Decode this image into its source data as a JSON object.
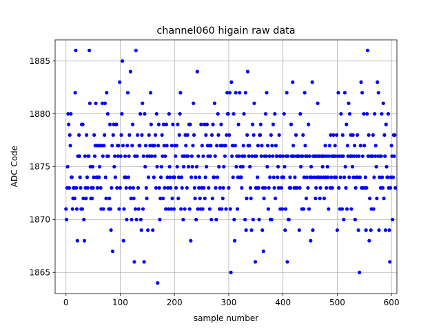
{
  "chart_data": {
    "type": "scatter",
    "title": "channel060 higain raw data",
    "xlabel": "sample number",
    "ylabel": "ADC Code",
    "xlim": [
      -20,
      610
    ],
    "ylim": [
      1863,
      1887
    ],
    "xticks": [
      0,
      100,
      200,
      300,
      400,
      500,
      600
    ],
    "yticks": [
      1865,
      1870,
      1875,
      1880,
      1885
    ],
    "grid": true,
    "marker_color": "#0000ff",
    "series": [
      {
        "values": [
          1871,
          1870,
          1873,
          1875,
          1880,
          1879,
          1873,
          1878,
          1877,
          1880,
          1874,
          1874,
          1871,
          1872,
          1873,
          1873,
          1872,
          1882,
          1886,
          1873,
          1871,
          1868,
          1876,
          1876,
          1878,
          1876,
          1874,
          1873,
          1871,
          1879,
          1871,
          1879,
          1872,
          1870,
          1868,
          1876,
          1873,
          1872,
          1878,
          1874,
          1873,
          1876,
          1876,
          1886,
          1881,
          1875,
          1872,
          1873,
          1872,
          1875,
          1873,
          1874,
          1878,
          1876,
          1877,
          1881,
          1874,
          1877,
          1873,
          1874,
          1877,
          1874,
          1875,
          1877,
          1873,
          1871,
          1877,
          1881,
          1876,
          1871,
          1877,
          1878,
          1881,
          1874,
          1872,
          1882,
          1876,
          1880,
          1876,
          1871,
          1872,
          1879,
          1871,
          1869,
          1873,
          1877,
          1867,
          1878,
          1879,
          1875,
          1876,
          1874,
          1879,
          1879,
          1873,
          1877,
          1876,
          1877,
          1871,
          1883,
          1873,
          1876,
          1878,
          1880,
          1885,
          1877,
          1868,
          1871,
          1874,
          1876,
          1874,
          1873,
          1870,
          1877,
          1882,
          1874,
          1876,
          1878,
          1873,
          1884,
          1872,
          1870,
          1877,
          1879,
          1873,
          1872,
          1866,
          1876,
          1871,
          1886,
          1870,
          1876,
          1878,
          1873,
          1871,
          1877,
          1877,
          1880,
          1870,
          1869,
          1878,
          1881,
          1871,
          1876,
          1866,
          1880,
          1875,
          1877,
          1873,
          1872,
          1876,
          1869,
          1874,
          1878,
          1876,
          1877,
          1882,
          1879,
          1876,
          1877,
          1869,
          1877,
          1874,
          1877,
          1876,
          1878,
          1873,
          1880,
          1875,
          1864,
          1877,
          1879,
          1873,
          1870,
          1872,
          1874,
          1875,
          1878,
          1876,
          1872,
          1879,
          1877,
          1873,
          1876,
          1871,
          1879,
          1877,
          1874,
          1873,
          1871,
          1880,
          1875,
          1874,
          1873,
          1871,
          1877,
          1872,
          1879,
          1874,
          1871,
          1874,
          1877,
          1876,
          1873,
          1877,
          1875,
          1879,
          1872,
          1874,
          1878,
          1880,
          1882,
          1871,
          1874,
          1873,
          1876,
          1870,
          1875,
          1876,
          1871,
          1878,
          1877,
          1876,
          1873,
          1878,
          1876,
          1875,
          1879,
          1871,
          1879,
          1868,
          1874,
          1876,
          1875,
          1877,
          1881,
          1878,
          1873,
          1872,
          1874,
          1870,
          1875,
          1884,
          1871,
          1876,
          1873,
          1874,
          1872,
          1871,
          1879,
          1873,
          1877,
          1871,
          1876,
          1873,
          1879,
          1872,
          1874,
          1878,
          1875,
          1879,
          1877,
          1876,
          1873,
          1877,
          1871,
          1876,
          1877,
          1870,
          1878,
          1872,
          1879,
          1874,
          1874,
          1881,
          1876,
          1873,
          1870,
          1877,
          1874,
          1880,
          1878,
          1875,
          1871,
          1873,
          1877,
          1879,
          1871,
          1877,
          1872,
          1873,
          1875,
          1877,
          1876,
          1877,
          1871,
          1878,
          1882,
          1880,
          1880,
          1873,
          1878,
          1882,
          1871,
          1865,
          1883,
          1876,
          1877,
          1874,
          1880,
          1870,
          1868,
          1877,
          1882,
          1875,
          1876,
          1871,
          1874,
          1879,
          1876,
          1882,
          1874,
          1875,
          1874,
          1873,
          1876,
          1875,
          1877,
          1880,
          1876,
          1870,
          1882,
          1869,
          1872,
          1878,
          1884,
          1877,
          1876,
          1877,
          1875,
          1873,
          1872,
          1869,
          1876,
          1879,
          1870,
          1878,
          1881,
          1876,
          1866,
          1873,
          1876,
          1873,
          1874,
          1877,
          1873,
          1870,
          1878,
          1878,
          1879,
          1876,
          1877,
          1869,
          1873,
          1867,
          1872,
          1876,
          1873,
          1880,
          1876,
          1882,
          1875,
          1877,
          1871,
          1873,
          1876,
          1874,
          1870,
          1878,
          1870,
          1877,
          1876,
          1879,
          1874,
          1873,
          1880,
          1872,
          1877,
          1876,
          1876,
          1874,
          1875,
          1873,
          1878,
          1876,
          1871,
          1876,
          1873,
          1874,
          1871,
          1876,
          1874,
          1880,
          1875,
          1869,
          1871,
          1876,
          1882,
          1866,
          1876,
          1870,
          1870,
          1873,
          1874,
          1873,
          1879,
          1876,
          1876,
          1883,
          1877,
          1876,
          1873,
          1874,
          1873,
          1878,
          1876,
          1873,
          1876,
          1876,
          1876,
          1869,
          1873,
          1880,
          1875,
          1876,
          1871,
          1876,
          1878,
          1871,
          1874,
          1882,
          1877,
          1876,
          1872,
          1874,
          1876,
          1873,
          1879,
          1871,
          1876,
          1874,
          1868,
          1875,
          1874,
          1883,
          1869,
          1876,
          1876,
          1874,
          1876,
          1872,
          1873,
          1876,
          1874,
          1881,
          1876,
          1874,
          1876,
          1872,
          1873,
          1874,
          1876,
          1876,
          1875,
          1876,
          1874,
          1872,
          1876,
          1877,
          1874,
          1873,
          1876,
          1875,
          1874,
          1871,
          1876,
          1877,
          1873,
          1878,
          1874,
          1876,
          1873,
          1876,
          1878,
          1876,
          1874,
          1877,
          1876,
          1874,
          1878,
          1869,
          1876,
          1882,
          1873,
          1876,
          1871,
          1874,
          1880,
          1876,
          1871,
          1878,
          1876,
          1870,
          1874,
          1882,
          1875,
          1873,
          1879,
          1871,
          1877,
          1876,
          1881,
          1874,
          1880,
          1876,
          1878,
          1871,
          1876,
          1875,
          1878,
          1874,
          1876,
          1877,
          1870,
          1873,
          1874,
          1876,
          1878,
          1874,
          1869,
          1876,
          1865,
          1874,
          1877,
          1883,
          1873,
          1882,
          1876,
          1873,
          1880,
          1877,
          1873,
          1874,
          1869,
          1873,
          1880,
          1886,
          1876,
          1878,
          1868,
          1872,
          1876,
          1869,
          1871,
          1876,
          1876,
          1878,
          1871,
          1874,
          1880,
          1876,
          1877,
          1875,
          1872,
          1883,
          1876,
          1882,
          1869,
          1874,
          1876,
          1873,
          1876,
          1880,
          1874,
          1873,
          1881,
          1872,
          1878,
          1876,
          1869,
          1879,
          1875,
          1874,
          1874,
          1880,
          1873,
          1869,
          1866,
          1873,
          1874,
          1877,
          1876,
          1870,
          1874,
          1878,
          1876,
          1878,
          1873
        ]
      }
    ]
  }
}
